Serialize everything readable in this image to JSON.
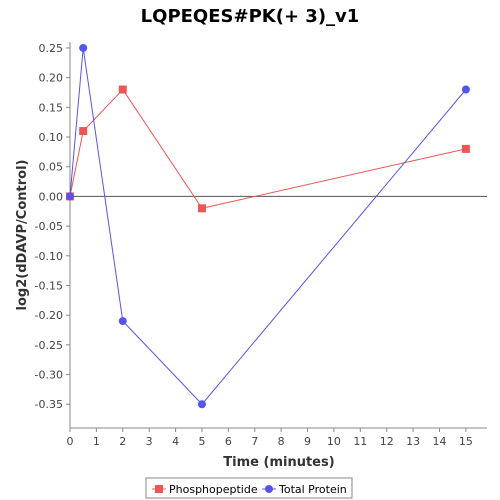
{
  "chart_data": {
    "type": "line",
    "title": "LQPEQES#PK(+ 3)_v1",
    "xlabel": "Time (minutes)",
    "ylabel": "log2(dDAVP/Control)",
    "xlim": [
      0,
      15.8
    ],
    "ylim": [
      -0.39,
      0.26
    ],
    "xticks": [
      0,
      1,
      2,
      3,
      4,
      5,
      6,
      7,
      8,
      9,
      10,
      11,
      12,
      13,
      14,
      15
    ],
    "xtick_labels": [
      "0",
      "1",
      "2",
      "3",
      "4",
      "5",
      "6",
      "7",
      "8",
      "9",
      "10",
      "11",
      "12",
      "13",
      "14",
      "15"
    ],
    "yticks": [
      0.25,
      0.2,
      0.15,
      0.1,
      0.05,
      0.0,
      -0.05,
      -0.1,
      -0.15,
      -0.2,
      -0.25,
      -0.3,
      -0.35
    ],
    "ytick_labels": [
      "0.25",
      "0.20",
      "0.15",
      "0.10",
      "0.05",
      "0.00",
      "-0.05",
      "-0.10",
      "-0.15",
      "-0.20",
      "-0.25",
      "-0.30",
      "-0.35"
    ],
    "zero_line": true,
    "grid": false,
    "legend_position": "bottom-center",
    "series": [
      {
        "name": "Phosphopeptide",
        "color": "#ee5555",
        "marker": "square",
        "x": [
          0,
          0.5,
          2,
          5,
          15
        ],
        "y": [
          0.0,
          0.11,
          0.18,
          -0.02,
          0.08
        ]
      },
      {
        "name": "Total Protein",
        "color": "#5555ee",
        "marker": "circle",
        "x": [
          0,
          0.5,
          2,
          5,
          15
        ],
        "y": [
          0.0,
          0.25,
          -0.21,
          -0.35,
          0.18
        ]
      }
    ]
  }
}
